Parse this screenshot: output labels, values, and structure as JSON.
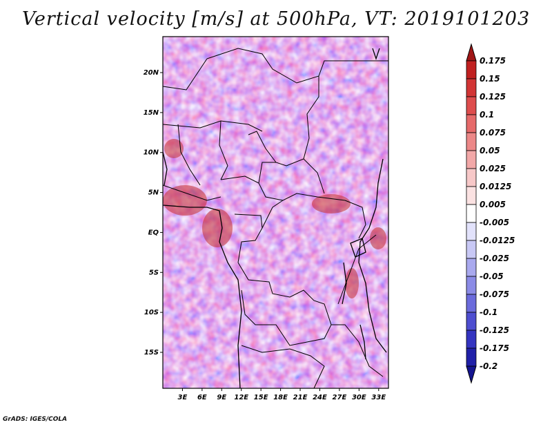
{
  "title": "Vertical velocity [m/s] at 500hPa, VT: 2019101203",
  "credit": "GrADS: IGES/COLA",
  "map": {
    "lat_labels": [
      "20N",
      "15N",
      "10N",
      "5N",
      "EQ",
      "5S",
      "10S",
      "15S"
    ],
    "lon_labels": [
      "3E",
      "6E",
      "9E",
      "12E",
      "15E",
      "18E",
      "21E",
      "24E",
      "27E",
      "30E",
      "33E"
    ],
    "lat_range": [
      -19.5,
      24.5
    ],
    "lon_range": [
      0,
      34.5
    ]
  },
  "colorbar": {
    "levels": [
      "0.175",
      "0.15",
      "0.125",
      "0.1",
      "0.075",
      "0.05",
      "0.025",
      "0.0125",
      "0.005",
      "-0.005",
      "-0.0125",
      "-0.025",
      "-0.05",
      "-0.075",
      "-0.1",
      "-0.125",
      "-0.175",
      "-0.2"
    ],
    "colors": [
      "#a01616",
      "#c02020",
      "#d23535",
      "#de4d4d",
      "#e66a6a",
      "#ec8888",
      "#f2a8a8",
      "#f7c8c8",
      "#fbe2e2",
      "#ffffff",
      "#e2e2fb",
      "#c8c8f5",
      "#a9a9ee",
      "#8b8be6",
      "#6b6bdc",
      "#4e4ed0",
      "#3434c0",
      "#2020a8",
      "#141490"
    ]
  }
}
